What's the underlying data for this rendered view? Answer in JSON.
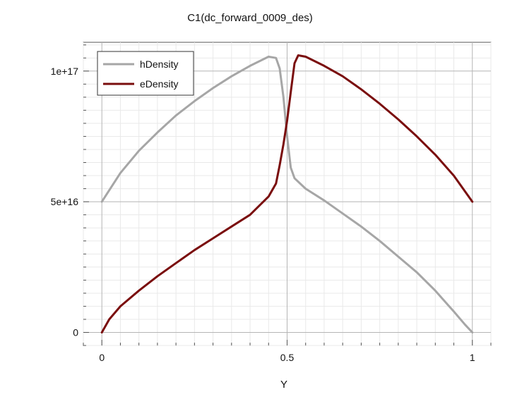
{
  "chart_data": {
    "type": "line",
    "title": "C1(dc_forward_0009_des)",
    "xlabel": "Y",
    "ylabel": "",
    "xlim": [
      -0.05,
      1.05
    ],
    "ylim": [
      -5000000000000000.0,
      1.11e+17
    ],
    "x_ticks": [
      0,
      0.5,
      1
    ],
    "x_tick_labels": [
      "0",
      "0.5",
      "1"
    ],
    "y_ticks": [
      0,
      5e+16,
      1e+17
    ],
    "y_tick_labels": [
      "0",
      "5e+16",
      "1e+17"
    ],
    "grid": true,
    "legend_position": "top-left",
    "series": [
      {
        "name": "hDensity",
        "color": "#a6a6a6",
        "x": [
          0,
          0.05,
          0.1,
          0.15,
          0.2,
          0.25,
          0.3,
          0.35,
          0.4,
          0.45,
          0.47,
          0.48,
          0.49,
          0.5,
          0.51,
          0.52,
          0.55,
          0.6,
          0.65,
          0.7,
          0.75,
          0.8,
          0.85,
          0.9,
          0.95,
          0.98,
          1.0
        ],
        "y": [
          5e+16,
          6.1e+16,
          6.95e+16,
          7.65e+16,
          8.3e+16,
          8.85e+16,
          9.35e+16,
          9.8e+16,
          1.02e+17,
          1.055e+17,
          1.05e+17,
          1.01e+17,
          9e+16,
          7.5e+16,
          6.3e+16,
          5.9e+16,
          5.5e+16,
          5.05e+16,
          4.55e+16,
          4.05e+16,
          3.5e+16,
          2.9e+16,
          2.3e+16,
          1.6e+16,
          8000000000000000.0,
          3000000000000000.0,
          0
        ]
      },
      {
        "name": "eDensity",
        "color": "#7a0d0d",
        "x": [
          0,
          0.02,
          0.05,
          0.1,
          0.15,
          0.2,
          0.25,
          0.3,
          0.35,
          0.4,
          0.45,
          0.47,
          0.48,
          0.49,
          0.5,
          0.51,
          0.52,
          0.53,
          0.55,
          0.6,
          0.65,
          0.7,
          0.75,
          0.8,
          0.85,
          0.9,
          0.95,
          1.0
        ],
        "y": [
          0,
          5000000000000000.0,
          1e+16,
          1.6e+16,
          2.15e+16,
          2.65e+16,
          3.15e+16,
          3.6e+16,
          4.05e+16,
          4.5e+16,
          5.2e+16,
          5.7e+16,
          6.4e+16,
          7.2e+16,
          8.1e+16,
          9.2e+16,
          1.03e+17,
          1.06e+17,
          1.055e+17,
          1.02e+17,
          9.8e+16,
          9.3e+16,
          8.75e+16,
          8.15e+16,
          7.5e+16,
          6.8e+16,
          6e+16,
          5e+16
        ]
      }
    ]
  }
}
